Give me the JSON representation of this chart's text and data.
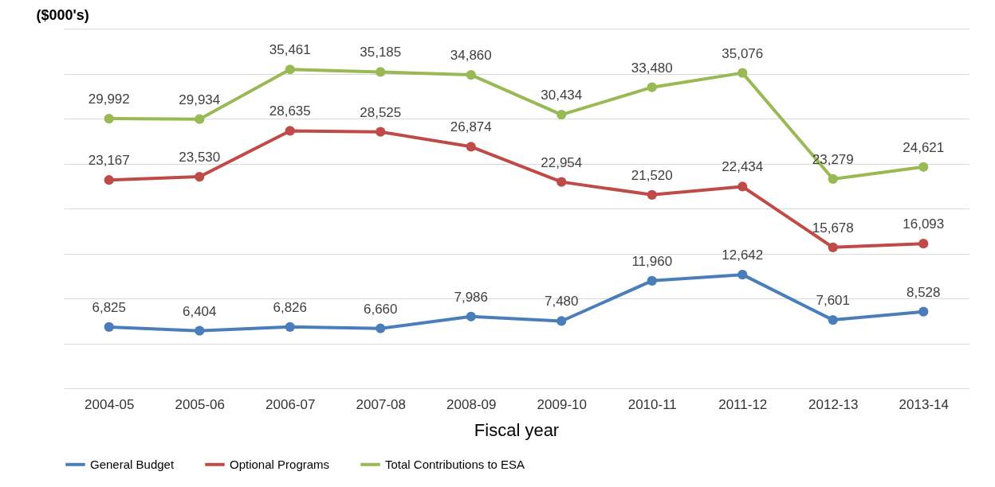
{
  "chart_data": {
    "type": "line",
    "ylabel": "($000's)",
    "xlabel": "Fiscal year",
    "categories": [
      "2004-05",
      "2005-06",
      "2006-07",
      "2007-08",
      "2008-09",
      "2009-10",
      "2010-11",
      "2011-12",
      "2012-13",
      "2013-14"
    ],
    "series": [
      {
        "name": "General Budget",
        "color": "#4a7ebb",
        "values": [
          6825,
          6404,
          6826,
          6660,
          7986,
          7480,
          11960,
          12642,
          7601,
          8528
        ],
        "value_labels": [
          "6,825",
          "6,404",
          "6,826",
          "6,660",
          "7,986",
          "7,480",
          "11,960",
          "12,642",
          "7,601",
          "8,528"
        ]
      },
      {
        "name": "Optional Programs",
        "color": "#be4b48",
        "values": [
          23167,
          23530,
          28635,
          28525,
          26874,
          22954,
          21520,
          22434,
          15678,
          16093
        ],
        "value_labels": [
          "23,167",
          "23,530",
          "28,635",
          "28,525",
          "26,874",
          "22,954",
          "21,520",
          "22,434",
          "15,678",
          "16,093"
        ]
      },
      {
        "name": "Total Contributions to ESA",
        "color": "#98b954",
        "values": [
          29992,
          29934,
          35461,
          35185,
          34860,
          30434,
          33480,
          35076,
          23279,
          24621
        ],
        "value_labels": [
          "29,992",
          "29,934",
          "35,461",
          "35,185",
          "34,860",
          "30,434",
          "33,480",
          "35,076",
          "23,279",
          "24,621"
        ]
      }
    ],
    "tick_labels": "x",
    "grid": "y",
    "legend": "bottom",
    "marker": "circle",
    "line_style": "solid"
  }
}
